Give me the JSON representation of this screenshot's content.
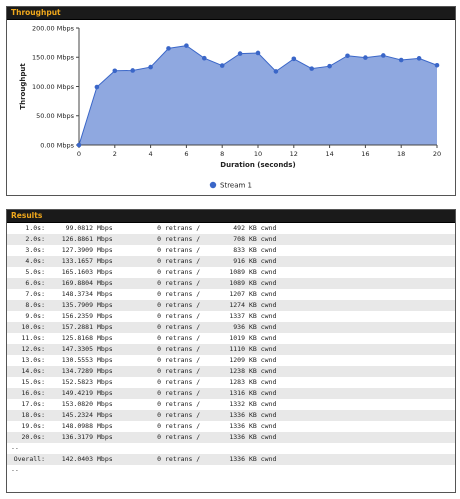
{
  "throughput": {
    "header": "Throughput"
  },
  "chart_data": {
    "type": "area",
    "x": [
      0,
      1,
      2,
      3,
      4,
      5,
      6,
      7,
      8,
      9,
      10,
      11,
      12,
      13,
      14,
      15,
      16,
      17,
      18,
      19,
      20
    ],
    "series": [
      {
        "name": "Stream 1",
        "values": [
          0,
          99.0812,
          126.8861,
          127.3909,
          133.1657,
          165.1603,
          169.8804,
          148.3734,
          135.7909,
          156.2359,
          157.2881,
          125.8168,
          147.3305,
          130.5553,
          134.7289,
          152.5823,
          149.4219,
          153.082,
          145.2324,
          148.0988,
          136.3179
        ]
      }
    ],
    "xlabel": "Duration (seconds)",
    "ylabel": "Throughput",
    "xlim": [
      0,
      20
    ],
    "ylim": [
      0,
      200
    ],
    "xticks": [
      "0",
      "2",
      "4",
      "6",
      "8",
      "10",
      "12",
      "14",
      "16",
      "18",
      "20"
    ],
    "yticks": [
      "0.00 Mbps",
      "50.00 Mbps",
      "100.00 Mbps",
      "150.00 Mbps",
      "200.00 Mbps"
    ],
    "fill_color": "#8fa8e0",
    "line_color": "#3a66c8",
    "grid": false,
    "legend": "bottom-center"
  },
  "results": {
    "header": "Results",
    "rows": [
      {
        "time": "1.0s:",
        "mbps": "99.0812",
        "retrans": "0",
        "cwnd": "492"
      },
      {
        "time": "2.0s:",
        "mbps": "126.8861",
        "retrans": "0",
        "cwnd": "708"
      },
      {
        "time": "3.0s:",
        "mbps": "127.3909",
        "retrans": "0",
        "cwnd": "833"
      },
      {
        "time": "4.0s:",
        "mbps": "133.1657",
        "retrans": "0",
        "cwnd": "916"
      },
      {
        "time": "5.0s:",
        "mbps": "165.1603",
        "retrans": "0",
        "cwnd": "1089"
      },
      {
        "time": "6.0s:",
        "mbps": "169.8804",
        "retrans": "0",
        "cwnd": "1089"
      },
      {
        "time": "7.0s:",
        "mbps": "148.3734",
        "retrans": "0",
        "cwnd": "1207"
      },
      {
        "time": "8.0s:",
        "mbps": "135.7909",
        "retrans": "0",
        "cwnd": "1274"
      },
      {
        "time": "9.0s:",
        "mbps": "156.2359",
        "retrans": "0",
        "cwnd": "1337"
      },
      {
        "time": "10.0s:",
        "mbps": "157.2881",
        "retrans": "0",
        "cwnd": "936"
      },
      {
        "time": "11.0s:",
        "mbps": "125.8168",
        "retrans": "0",
        "cwnd": "1019"
      },
      {
        "time": "12.0s:",
        "mbps": "147.3305",
        "retrans": "0",
        "cwnd": "1110"
      },
      {
        "time": "13.0s:",
        "mbps": "130.5553",
        "retrans": "0",
        "cwnd": "1209"
      },
      {
        "time": "14.0s:",
        "mbps": "134.7289",
        "retrans": "0",
        "cwnd": "1238"
      },
      {
        "time": "15.0s:",
        "mbps": "152.5823",
        "retrans": "0",
        "cwnd": "1283"
      },
      {
        "time": "16.0s:",
        "mbps": "149.4219",
        "retrans": "0",
        "cwnd": "1316"
      },
      {
        "time": "17.0s:",
        "mbps": "153.0820",
        "retrans": "0",
        "cwnd": "1332"
      },
      {
        "time": "18.0s:",
        "mbps": "145.2324",
        "retrans": "0",
        "cwnd": "1336"
      },
      {
        "time": "19.0s:",
        "mbps": "148.0988",
        "retrans": "0",
        "cwnd": "1336"
      },
      {
        "time": "20.0s:",
        "mbps": "136.3179",
        "retrans": "0",
        "cwnd": "1336"
      }
    ],
    "separator": "--",
    "overall": {
      "time": "Overall:",
      "mbps": "142.0403",
      "retrans": "0",
      "cwnd": "1336"
    },
    "unit_mbps": "Mbps",
    "unit_retrans": "retrans /",
    "unit_cwnd": "KB cwnd"
  }
}
